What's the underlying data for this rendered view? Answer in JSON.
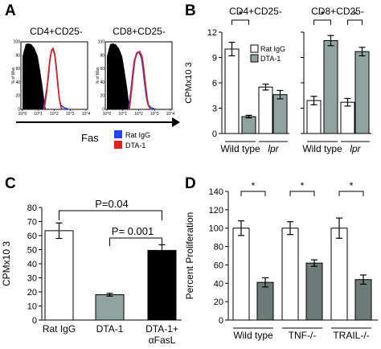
{
  "panels": {
    "A": {
      "label": "A",
      "titles": [
        "CD4+CD25-",
        "CD8+CD25-"
      ],
      "y_tick_labels": [
        "100",
        "80",
        "60",
        "40",
        "20",
        "0"
      ],
      "y_axis_label": "% of Max",
      "x_tick_labels": [
        "10^0",
        "10^1",
        "10^2",
        "10^3",
        "10^4"
      ],
      "x_label": "Fas",
      "legend": [
        {
          "name": "Rat IgG",
          "color": "#2244ee"
        },
        {
          "name": "DTA-1",
          "color": "#e02020"
        }
      ]
    },
    "B": {
      "label": "B"
    },
    "C": {
      "label": "C"
    },
    "D": {
      "label": "D"
    }
  },
  "colors": {
    "white_bar": "#ffffff",
    "gray_bar": "#8fa3a0",
    "black_bar": "#000000",
    "d_gray_bar": "#6c7a78"
  },
  "chart_data": [
    {
      "panel": "B-left",
      "type": "bar",
      "title": "CD4+CD25-",
      "ylabel": "CPMx10 3",
      "ylim": [
        0,
        12
      ],
      "yticks": [
        0,
        3,
        6,
        9,
        12
      ],
      "categories": [
        "Wild type",
        "lpr"
      ],
      "series": [
        {
          "name": "Rat IgG",
          "values": [
            10.0,
            5.5
          ],
          "errors": [
            0.8,
            0.35
          ]
        },
        {
          "name": "DTA-1",
          "values": [
            2.0,
            4.6
          ],
          "errors": [
            0.15,
            0.5
          ]
        }
      ],
      "legend": [
        "Rat IgG",
        "DTA-1"
      ],
      "significance": [
        {
          "category": "Wild type",
          "label": "*"
        }
      ]
    },
    {
      "panel": "B-right",
      "type": "bar",
      "title": "CD8+CD25-",
      "ylim": [
        0,
        12
      ],
      "categories": [
        "Wild type",
        "lpr"
      ],
      "series": [
        {
          "name": "Rat IgG",
          "values": [
            3.9,
            3.7
          ],
          "errors": [
            0.5,
            0.45
          ]
        },
        {
          "name": "DTA-1",
          "values": [
            11.0,
            9.7
          ],
          "errors": [
            0.6,
            0.5
          ]
        }
      ],
      "significance": [
        {
          "category": "Wild type",
          "label": "*"
        },
        {
          "category": "lpr",
          "label": "*"
        }
      ]
    },
    {
      "panel": "C",
      "type": "bar",
      "ylabel": "CPMx10 3",
      "ylim": [
        0,
        80
      ],
      "yticks": [
        0,
        10,
        20,
        30,
        40,
        50,
        60,
        70,
        80
      ],
      "categories": [
        "Rat IgG",
        "DTA-1",
        "DTA-1+ αFasL"
      ],
      "values": [
        63.5,
        18.0,
        49.5
      ],
      "errors": [
        5.5,
        1.0,
        4.0
      ],
      "annotations": [
        "P=0.04",
        "P= 0.001"
      ]
    },
    {
      "panel": "D",
      "type": "bar",
      "ylabel": "Percent Proliferation",
      "ylim": [
        0,
        140
      ],
      "yticks": [
        0,
        20,
        40,
        60,
        80,
        100,
        120,
        140
      ],
      "categories": [
        "Wild type",
        "TNF-/-",
        "TRAIL-/-"
      ],
      "series": [
        {
          "values": [
            100,
            100,
            100
          ],
          "errors": [
            8,
            7,
            11
          ]
        },
        {
          "values": [
            41,
            62,
            44
          ],
          "errors": [
            5,
            3.5,
            5
          ]
        }
      ],
      "significance": [
        {
          "category": "Wild type",
          "label": "*"
        },
        {
          "category": "TNF-/-",
          "label": "*"
        },
        {
          "category": "TRAIL-/-",
          "label": "*"
        }
      ]
    }
  ]
}
